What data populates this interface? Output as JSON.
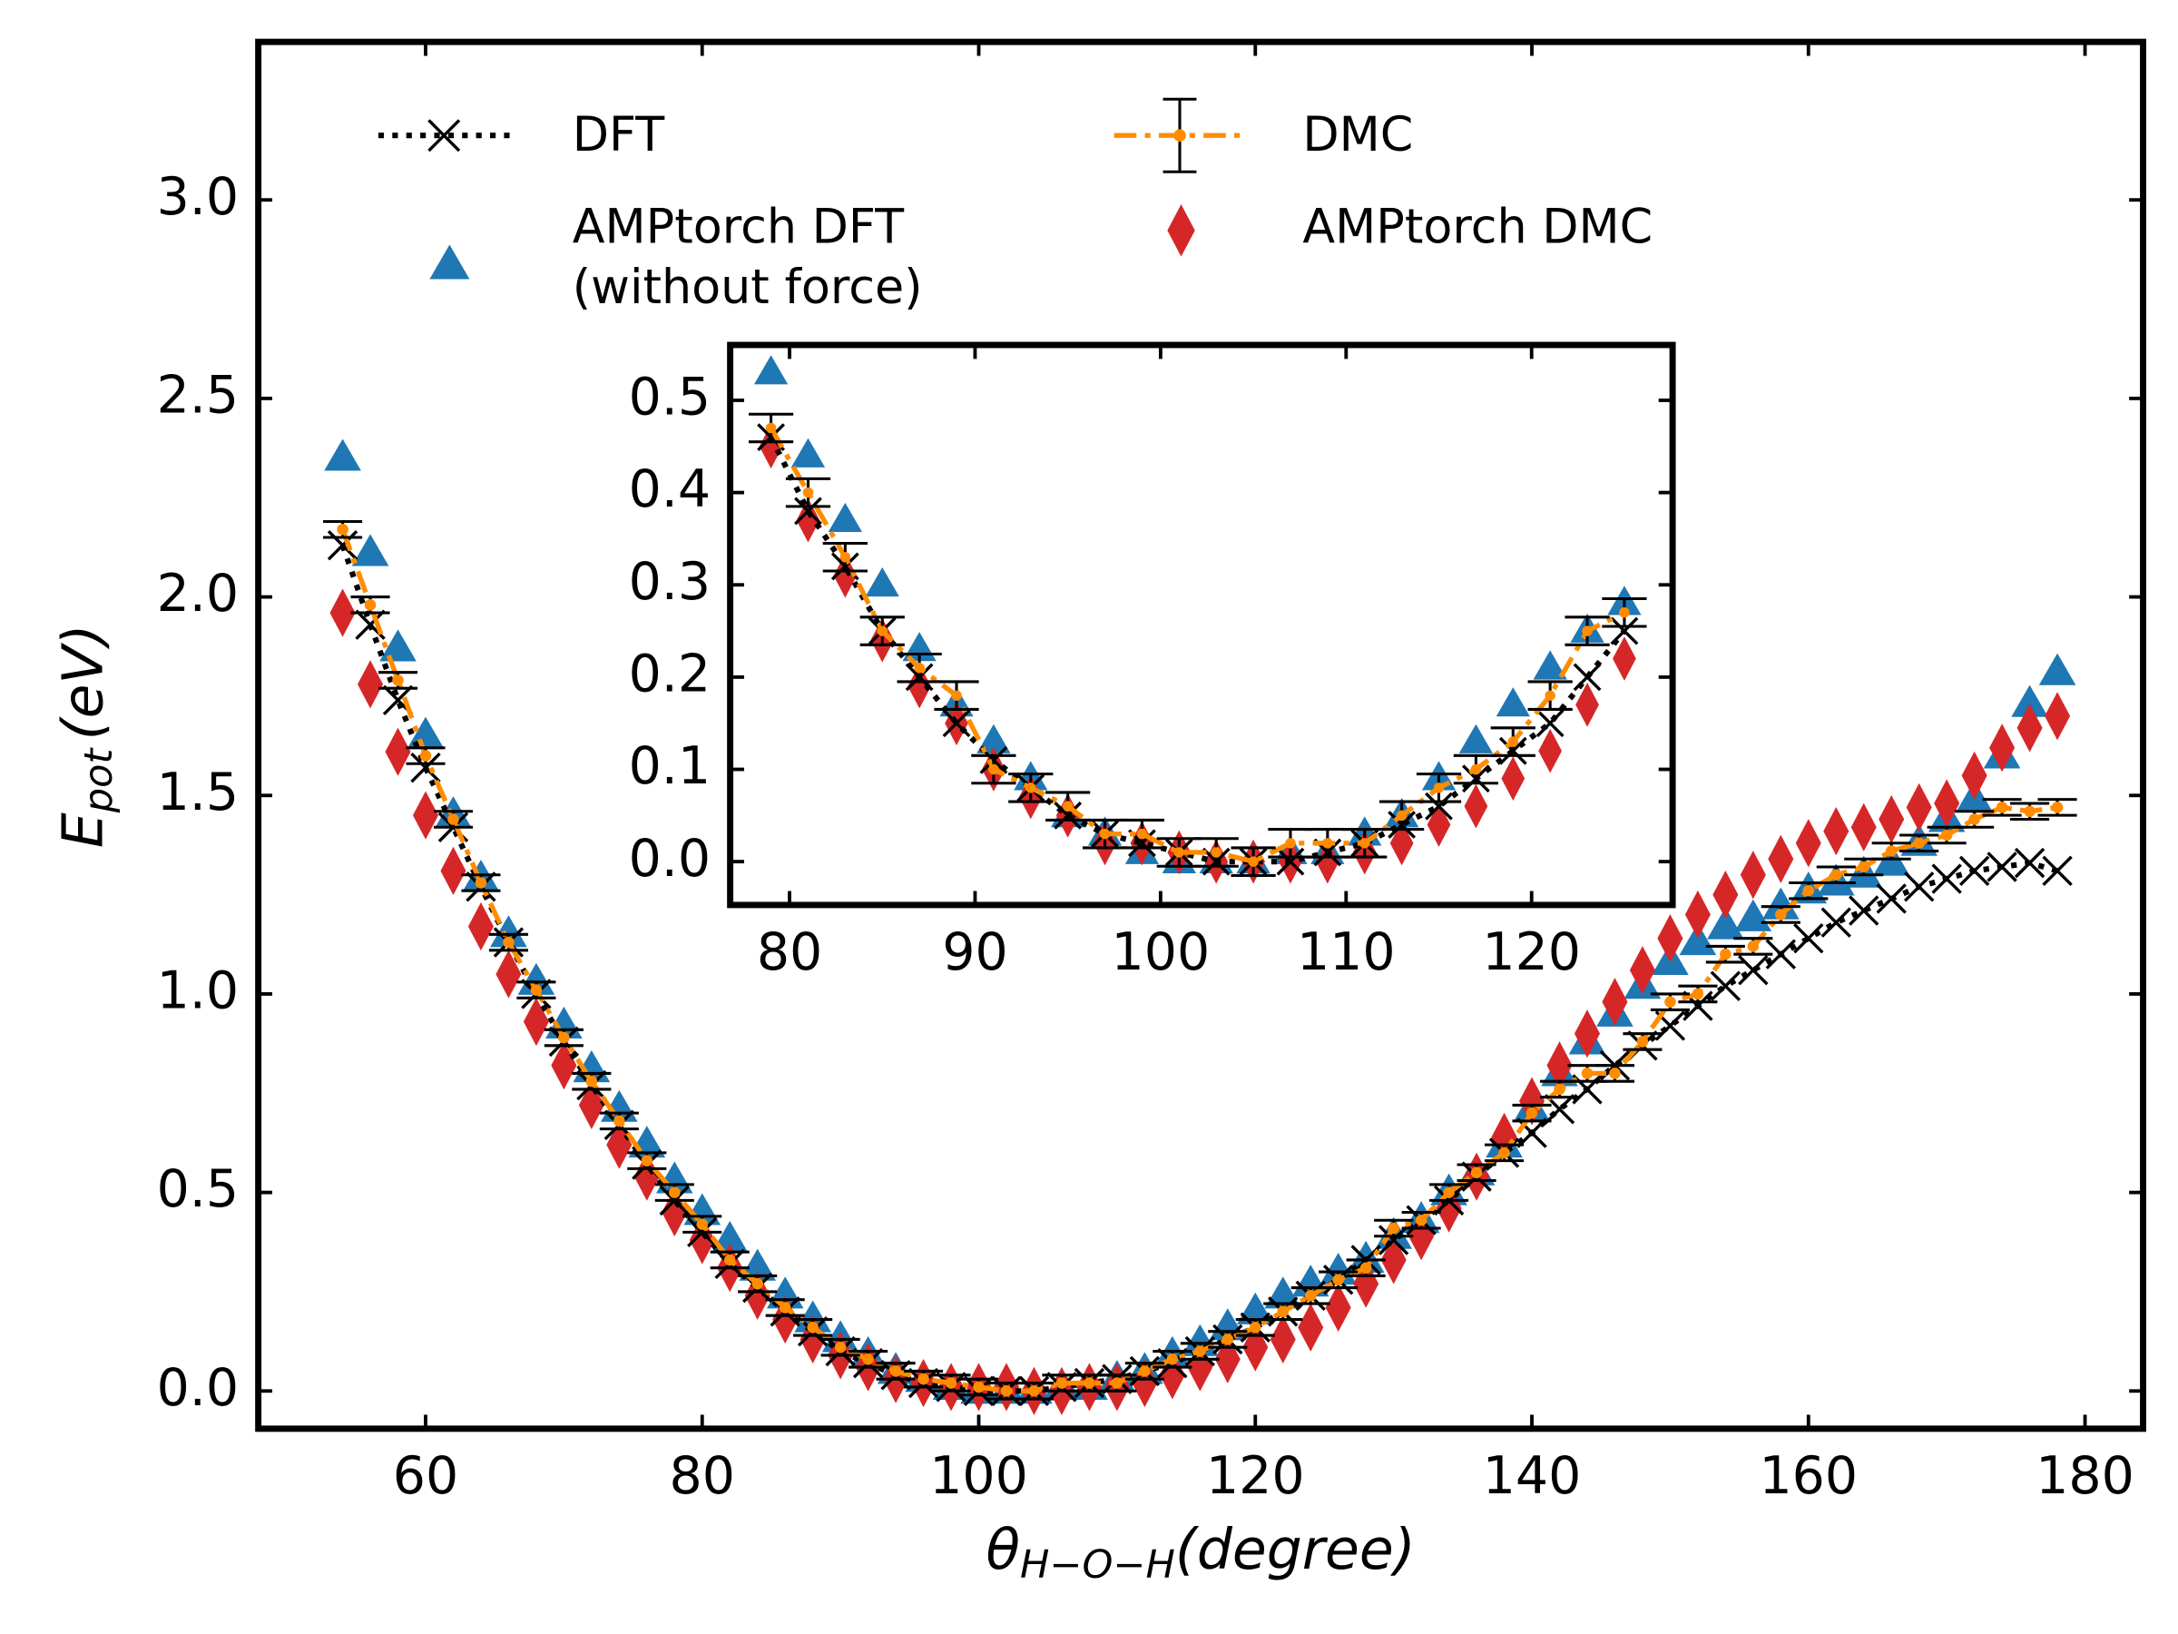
{
  "chart_data": [
    {
      "type": "line",
      "xlabel": [
        "θ",
        "H−O−H",
        "(degree)"
      ],
      "ylabel": [
        "E",
        "pot",
        "(eV)"
      ],
      "legend": "upper left",
      "xlim": [
        47.9,
        184.2
      ],
      "ylim": [
        -0.095,
        3.398
      ],
      "xticks": [
        60,
        80,
        100,
        120,
        140,
        160,
        180
      ],
      "yticks": [
        {
          "value": 0,
          "label": "0.0"
        },
        0.5,
        {
          "value": 1,
          "label": "1.0"
        },
        1.5,
        {
          "value": 2,
          "label": "2.0"
        },
        2.5,
        {
          "value": 3,
          "label": "3.0"
        }
      ],
      "x": [
        54,
        56,
        58,
        60,
        62,
        64,
        66,
        68,
        70,
        72,
        74,
        76,
        78,
        80,
        82,
        84,
        86,
        88,
        90,
        92,
        94,
        96,
        98,
        100,
        102,
        104,
        106,
        108,
        110,
        112,
        114,
        116,
        118,
        120,
        122,
        124,
        126,
        128,
        130,
        132,
        134,
        136,
        138,
        140,
        142,
        144,
        146,
        148,
        150,
        152,
        154,
        156,
        158,
        160,
        162,
        164,
        166,
        168,
        170,
        172,
        174,
        176,
        178
      ],
      "series": [
        {
          "name": "AMPtorch DFT\n(without force)",
          "color": "#1f77b4",
          "marker": "triangle",
          "linestyle": "none",
          "values": [
            2.35,
            2.11,
            1.87,
            1.65,
            1.45,
            1.29,
            1.15,
            1.03,
            0.92,
            0.81,
            0.71,
            0.62,
            0.53,
            0.45,
            0.38,
            0.31,
            0.24,
            0.18,
            0.13,
            0.09,
            0.05,
            0.03,
            0.01,
            0,
            0,
            0,
            0.01,
            0.01,
            0.03,
            0.05,
            0.09,
            0.12,
            0.16,
            0.2,
            0.24,
            0.27,
            0.3,
            0.33,
            0.39,
            0.43,
            0.5,
            0.55,
            0.62,
            0.71,
            0.8,
            0.88,
            0.95,
            1.02,
            1.08,
            1.13,
            1.17,
            1.19,
            1.22,
            1.26,
            1.28,
            1.3,
            1.33,
            1.38,
            1.44,
            1.49,
            1.6,
            1.73,
            1.81
          ]
        },
        {
          "name": "AMPtorch DMC",
          "color": "#d62728",
          "marker": "diamond",
          "linestyle": "none",
          "values": [
            1.96,
            1.78,
            1.61,
            1.45,
            1.31,
            1.17,
            1.05,
            0.93,
            0.82,
            0.72,
            0.62,
            0.54,
            0.45,
            0.38,
            0.31,
            0.24,
            0.18,
            0.13,
            0.09,
            0.06,
            0.03,
            0.02,
            0.01,
            0.01,
            0.01,
            0,
            0,
            0.01,
            0.01,
            0.02,
            0.04,
            0.06,
            0.08,
            0.11,
            0.13,
            0.16,
            0.21,
            0.27,
            0.33,
            0.39,
            0.46,
            0.54,
            0.64,
            0.73,
            0.82,
            0.9,
            0.98,
            1.06,
            1.14,
            1.2,
            1.25,
            1.3,
            1.34,
            1.38,
            1.41,
            1.42,
            1.44,
            1.47,
            1.48,
            1.55,
            1.62,
            1.67,
            1.7
          ]
        },
        {
          "name": "DFT",
          "color": "#000000",
          "marker": "x",
          "linestyle": "dotted",
          "values": [
            2.13,
            1.93,
            1.74,
            1.57,
            1.42,
            1.27,
            1.13,
            1,
            0.88,
            0.77,
            0.67,
            0.57,
            0.48,
            0.4,
            0.32,
            0.26,
            0.2,
            0.15,
            0.1,
            0.07,
            0.04,
            0.02,
            0.01,
            0,
            0,
            0,
            0.01,
            0.02,
            0.03,
            0.05,
            0.07,
            0.1,
            0.13,
            0.16,
            0.2,
            0.24,
            0.28,
            0.33,
            0.38,
            0.43,
            0.48,
            0.54,
            0.6,
            0.65,
            0.71,
            0.76,
            0.82,
            0.87,
            0.92,
            0.97,
            1.02,
            1.06,
            1.1,
            1.14,
            1.18,
            1.21,
            1.24,
            1.27,
            1.29,
            1.31,
            1.32,
            1.33,
            1.31
          ]
        },
        {
          "name": "DMC",
          "color": "#ff8c00",
          "marker": "dot",
          "linestyle": "dashdot",
          "values": [
            2.17,
            1.98,
            1.79,
            1.6,
            1.44,
            1.28,
            1.13,
            1.01,
            0.89,
            0.78,
            0.68,
            0.58,
            0.5,
            0.42,
            0.33,
            0.27,
            0.21,
            0.16,
            0.11,
            0.08,
            0.05,
            0.03,
            0.02,
            0.01,
            0,
            0,
            0.02,
            0.02,
            0.02,
            0.05,
            0.08,
            0.1,
            0.13,
            0.16,
            0.2,
            0.24,
            0.28,
            0.31,
            0.41,
            0.43,
            0.5,
            0.55,
            0.6,
            0.7,
            0.76,
            0.8,
            0.8,
            0.88,
            0.98,
            1,
            1.1,
            1.12,
            1.2,
            1.26,
            1.3,
            1.32,
            1.36,
            1.38,
            1.4,
            1.44,
            1.47,
            1.46,
            1.47
          ],
          "errors": [
            0.02,
            0.02,
            0.02,
            0.02,
            0.02,
            0.02,
            0.02,
            0.02,
            0.02,
            0.02,
            0.02,
            0.02,
            0.02,
            0.02,
            0.02,
            0.02,
            0.02,
            0.02,
            0.02,
            0.02,
            0.02,
            0.02,
            0.02,
            0.02,
            0.02,
            0.02,
            0.02,
            0.02,
            0.02,
            0.02,
            0.02,
            0.02,
            0.02,
            0.02,
            0.02,
            0.02,
            0.02,
            0.02,
            0.02,
            0.02,
            0.02,
            0.02,
            0.02,
            0.02,
            0.02,
            0.02,
            0.02,
            0.02,
            0.02,
            0.02,
            0.02,
            0.02,
            0.02,
            0.02,
            0.02,
            0.02,
            0.02,
            0.02,
            0.02,
            0.02,
            0.02,
            0.02,
            0.02
          ],
          "error_color": "#000000"
        }
      ]
    },
    {
      "type": "line",
      "xlim": [
        76.8,
        127.6
      ],
      "ylim": [
        -0.047,
        0.56
      ],
      "xticks": [
        80,
        90,
        100,
        110,
        120
      ],
      "yticks": [
        {
          "value": 0,
          "label": "0.0"
        },
        0.1,
        0.2,
        0.3,
        0.4,
        0.5
      ],
      "x": [
        79,
        81,
        83,
        85,
        87,
        89,
        91,
        93,
        95,
        97,
        99,
        101,
        103,
        105,
        107,
        109,
        111,
        113,
        115,
        117,
        119,
        121,
        123,
        125
      ],
      "series": [
        {
          "color": "#1f77b4",
          "marker": "triangle",
          "linestyle": "none",
          "values": [
            0.53,
            0.44,
            0.37,
            0.3,
            0.23,
            0.17,
            0.13,
            0.09,
            0.05,
            0.03,
            0.01,
            0,
            0,
            0,
            0.01,
            0.01,
            0.03,
            0.05,
            0.09,
            0.13,
            0.17,
            0.21,
            0.25,
            0.28
          ]
        },
        {
          "color": "#d62728",
          "marker": "diamond",
          "linestyle": "none",
          "values": [
            0.45,
            0.37,
            0.31,
            0.24,
            0.19,
            0.15,
            0.1,
            0.07,
            0.05,
            0.02,
            0.02,
            0.01,
            0,
            0,
            0,
            0,
            0.01,
            0.02,
            0.04,
            0.06,
            0.09,
            0.12,
            0.17,
            0.22
          ]
        },
        {
          "color": "#000000",
          "marker": "x",
          "linestyle": "dotted",
          "values": [
            0.46,
            0.38,
            0.32,
            0.25,
            0.2,
            0.15,
            0.11,
            0.08,
            0.05,
            0.03,
            0.02,
            0.01,
            0,
            0,
            0,
            0.01,
            0.02,
            0.04,
            0.06,
            0.09,
            0.12,
            0.15,
            0.2,
            0.25
          ]
        },
        {
          "color": "#ff8c00",
          "marker": "dot",
          "linestyle": "dashdot",
          "values": [
            0.47,
            0.4,
            0.33,
            0.25,
            0.21,
            0.18,
            0.1,
            0.08,
            0.06,
            0.03,
            0.03,
            0.01,
            0.01,
            0,
            0.02,
            0.02,
            0.02,
            0.05,
            0.08,
            0.1,
            0.13,
            0.18,
            0.25,
            0.27
          ],
          "errors": [
            0.015,
            0.015,
            0.015,
            0.015,
            0.015,
            0.015,
            0.015,
            0.015,
            0.015,
            0.015,
            0.015,
            0.015,
            0.015,
            0.015,
            0.015,
            0.015,
            0.015,
            0.015,
            0.015,
            0.015,
            0.015,
            0.015,
            0.015,
            0.015
          ],
          "error_color": "#000000"
        }
      ]
    }
  ]
}
